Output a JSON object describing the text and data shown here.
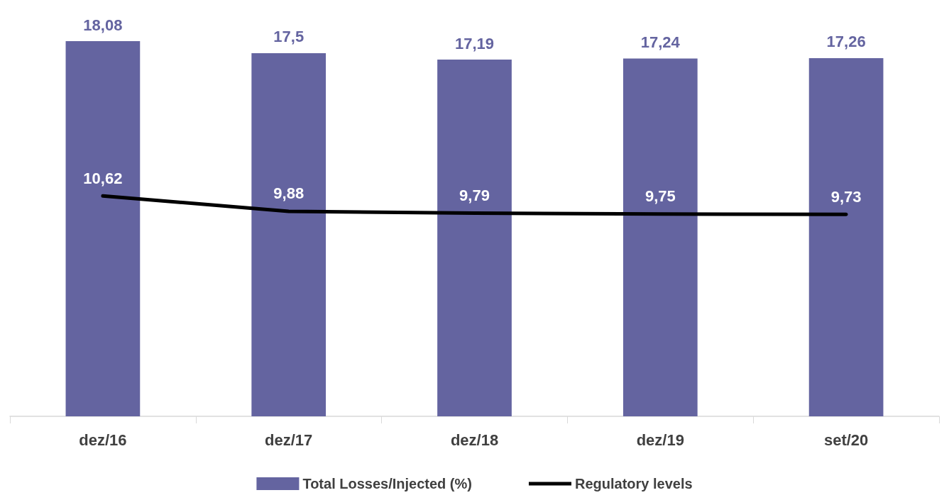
{
  "chart_data": {
    "type": "bar",
    "categories": [
      "dez/16",
      "dez/17",
      "dez/18",
      "dez/19",
      "set/20"
    ],
    "series": [
      {
        "name": "Total Losses/Injected (%)",
        "color": "#6464a0",
        "values": [
          18.08,
          17.5,
          17.19,
          17.24,
          17.26
        ],
        "value_labels": [
          "18,08",
          "17,5",
          "17,19",
          "17,24",
          "17,26"
        ]
      },
      {
        "name": "Regulatory levels",
        "type": "line",
        "color": "#000000",
        "values": [
          10.62,
          9.88,
          9.79,
          9.75,
          9.73
        ],
        "value_labels": [
          "10,62",
          "9,88",
          "9,79",
          "9,75",
          "9,73"
        ]
      }
    ],
    "grid": false,
    "legend": "bottom",
    "marker": "none",
    "line_style": "solid"
  }
}
